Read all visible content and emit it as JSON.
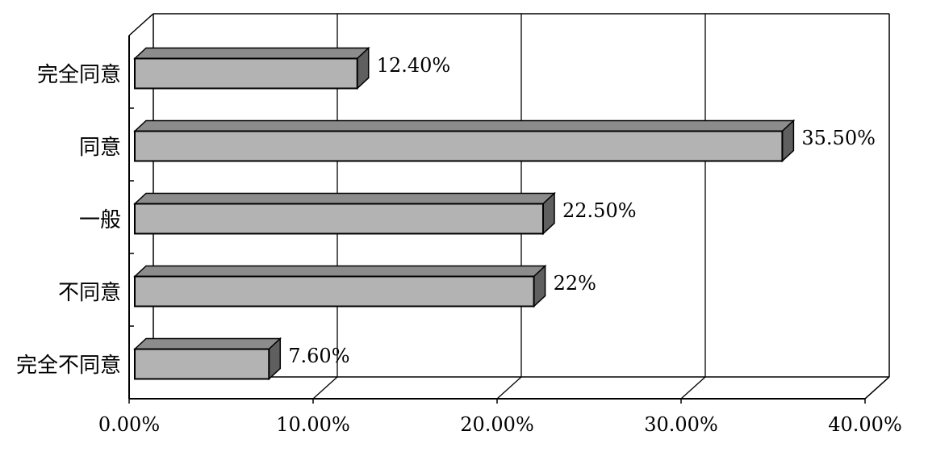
{
  "chart_data": {
    "type": "bar",
    "orientation": "horizontal",
    "style": "3d",
    "categories": [
      "完全同意",
      "同意",
      "一般",
      "不同意",
      "完全不同意"
    ],
    "values": [
      12.4,
      35.5,
      22.5,
      22,
      7.6
    ],
    "data_labels": [
      "12.40%",
      "35.50%",
      "22.50%",
      "22%",
      "7.60%"
    ],
    "xlim": [
      0,
      40
    ],
    "xticks": [
      0,
      10,
      20,
      30,
      40
    ],
    "xtick_labels": [
      "0.00%",
      "10.00%",
      "20.00%",
      "30.00%",
      "40.00%"
    ],
    "title": "",
    "xlabel": "",
    "ylabel": "",
    "grid": "vertical",
    "legend": "none",
    "colors": {
      "bar_front": "#b3b3b3",
      "bar_top": "#8c8c8c",
      "bar_side": "#5f5f5f",
      "frame": "#000000"
    }
  }
}
